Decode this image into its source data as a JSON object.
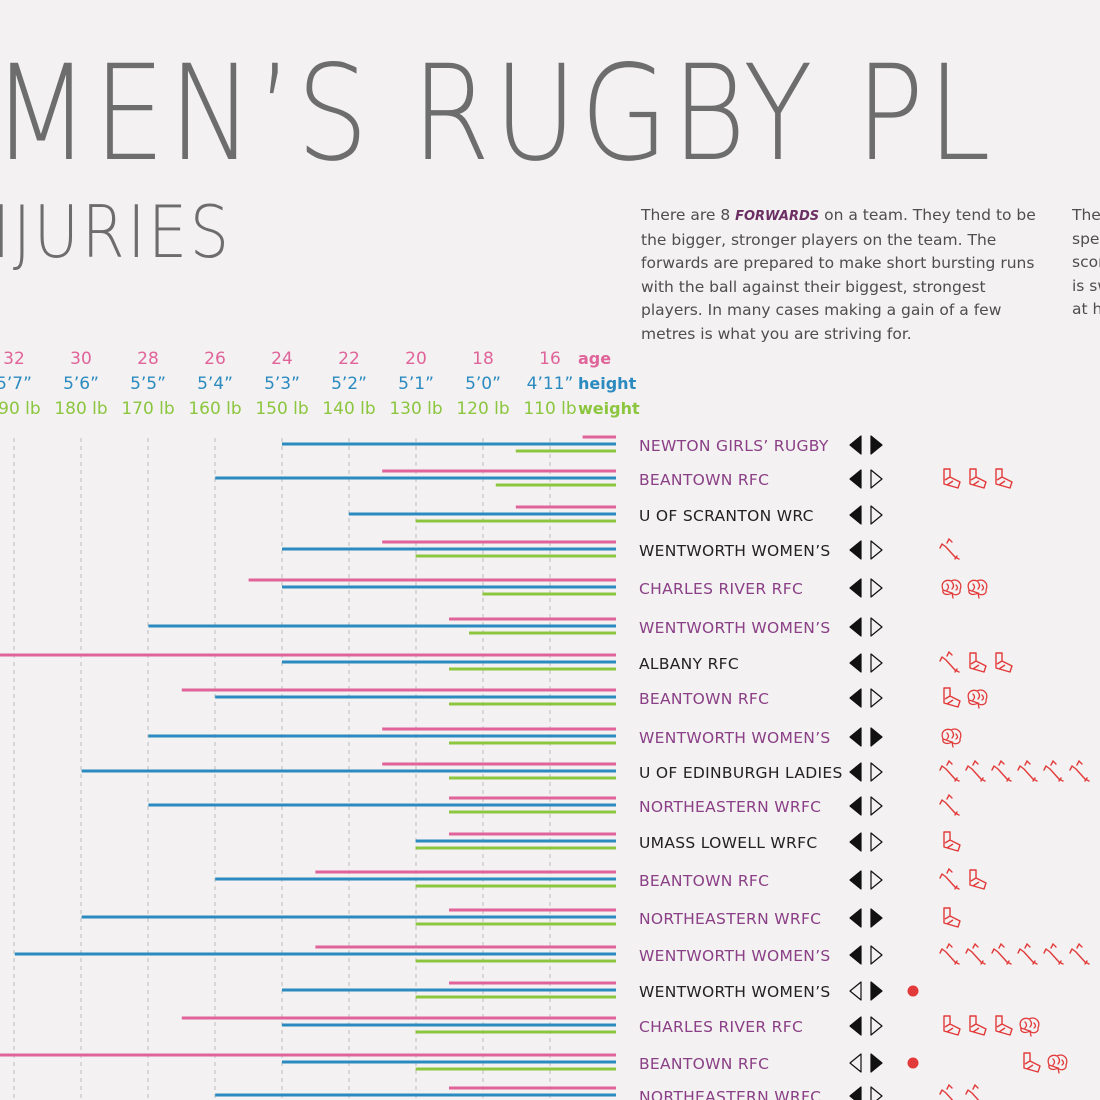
{
  "header": {
    "title": "MEN’S RUGBY PL",
    "subtitle": "IJURIES",
    "para1": {
      "before": "There are 8 ",
      "bold": "FORWARDS",
      "after": " on a team. They tend to be the bigger, stronger players on the team. The forwards are prepared to make short bursting runs with the ball against their biggest, strongest players. In many cases making a gain of a few metres is what you are striving for."
    },
    "para2_lines": [
      "There",
      "speed",
      "scori",
      "is sw",
      "at hi"
    ]
  },
  "colors": {
    "age": "#e0649a",
    "height": "#2b8bc0",
    "weight": "#8cc63f",
    "team_purple": "#8a3f86",
    "team_black": "#222222",
    "injury_red": "#e23a3a",
    "grid": "#bdbdbd",
    "text_gray": "#6d6d6d"
  },
  "chart_data": {
    "type": "bar",
    "axis_labels": {
      "age": "age",
      "height": "height",
      "weight": "weight"
    },
    "ticks": {
      "age": [
        "32",
        "30",
        "28",
        "26",
        "24",
        "22",
        "20",
        "18",
        "16"
      ],
      "height": [
        "5’7”",
        "5’6”",
        "5’5”",
        "5’4”",
        "5’3”",
        "5’2”",
        "5’1”",
        "5’0”",
        "4’11”"
      ],
      "weight": [
        "190 lb",
        "180 lb",
        "170 lb",
        "160 lb",
        "150 lb",
        "140 lb",
        "130 lb",
        "120 lb",
        "110 lb"
      ]
    },
    "axis_ranges": {
      "age": [
        15,
        34
      ],
      "height_in": [
        58,
        68
      ],
      "weight_lb": [
        100,
        200
      ]
    },
    "grid": true,
    "players": [
      {
        "team": "NEWTON GIRLS’ RUGBY",
        "team_color": "purple",
        "age": 16,
        "height_in": 63,
        "weight_lb": 115,
        "left_arrow": "filled",
        "right_arrow": "filled",
        "injuries": [],
        "marker": false
      },
      {
        "team": "BEANTOWN RFC",
        "team_color": "purple",
        "age": 22,
        "height_in": 64,
        "weight_lb": 118,
        "left_arrow": "filled",
        "right_arrow": "outline",
        "injuries": [
          "ankle",
          "ankle",
          "ankle"
        ],
        "marker": false
      },
      {
        "team": "U OF SCRANTON WRC",
        "team_color": "black",
        "age": 18,
        "height_in": 62,
        "weight_lb": 130,
        "left_arrow": "filled",
        "right_arrow": "outline",
        "injuries": [],
        "marker": false
      },
      {
        "team": "WENTWORTH WOMEN’S",
        "team_color": "black",
        "age": 22,
        "height_in": 63,
        "weight_lb": 130,
        "left_arrow": "filled",
        "right_arrow": "outline",
        "injuries": [
          "bone"
        ],
        "marker": false
      },
      {
        "team": "CHARLES RIVER RFC",
        "team_color": "purple",
        "age": 26,
        "height_in": 63,
        "weight_lb": 120,
        "left_arrow": "filled",
        "right_arrow": "outline",
        "injuries": [
          "brain",
          "brain"
        ],
        "marker": false
      },
      {
        "team": "WENTWORTH WOMEN’S",
        "team_color": "purple",
        "age": 20,
        "height_in": 65,
        "weight_lb": 122,
        "left_arrow": "filled",
        "right_arrow": "outline",
        "injuries": [],
        "marker": false
      },
      {
        "team": "ALBANY RFC",
        "team_color": "black",
        "age": 34,
        "height_in": 63,
        "weight_lb": 125,
        "left_arrow": "filled",
        "right_arrow": "outline",
        "injuries": [
          "bone",
          "ankle",
          "ankle"
        ],
        "marker": false
      },
      {
        "team": "BEANTOWN RFC",
        "team_color": "purple",
        "age": 28,
        "height_in": 64,
        "weight_lb": 125,
        "left_arrow": "filled",
        "right_arrow": "outline",
        "injuries": [
          "ankle",
          "brain"
        ],
        "marker": false
      },
      {
        "team": "WENTWORTH WOMEN’S",
        "team_color": "purple",
        "age": 22,
        "height_in": 65,
        "weight_lb": 125,
        "left_arrow": "filled",
        "right_arrow": "filled",
        "injuries": [
          "brain"
        ],
        "marker": false
      },
      {
        "team": "U OF EDINBURGH LADIES",
        "team_color": "black",
        "age": 22,
        "height_in": 66,
        "weight_lb": 125,
        "left_arrow": "filled",
        "right_arrow": "outline",
        "injuries": [
          "bone",
          "bone",
          "bone",
          "bone",
          "bone",
          "bone"
        ],
        "marker": false
      },
      {
        "team": "NORTHEASTERN WRFC",
        "team_color": "purple",
        "age": 20,
        "height_in": 65,
        "weight_lb": 125,
        "left_arrow": "filled",
        "right_arrow": "outline",
        "injuries": [
          "bone"
        ],
        "marker": false
      },
      {
        "team": "UMASS LOWELL WRFC",
        "team_color": "black",
        "age": 20,
        "height_in": 61,
        "weight_lb": 130,
        "left_arrow": "filled",
        "right_arrow": "outline",
        "injuries": [
          "ankle"
        ],
        "marker": false
      },
      {
        "team": "BEANTOWN RFC",
        "team_color": "purple",
        "age": 24,
        "height_in": 64,
        "weight_lb": 130,
        "left_arrow": "filled",
        "right_arrow": "outline",
        "injuries": [
          "bone",
          "ankle"
        ],
        "marker": false
      },
      {
        "team": "NORTHEASTERN WRFC",
        "team_color": "purple",
        "age": 20,
        "height_in": 66,
        "weight_lb": 130,
        "left_arrow": "filled",
        "right_arrow": "filled",
        "injuries": [
          "ankle"
        ],
        "marker": false
      },
      {
        "team": "WENTWORTH WOMEN’S",
        "team_color": "purple",
        "age": 24,
        "height_in": 67,
        "weight_lb": 130,
        "left_arrow": "filled",
        "right_arrow": "outline",
        "injuries": [
          "bone",
          "bone",
          "bone",
          "bone",
          "bone",
          "bone"
        ],
        "marker": false
      },
      {
        "team": "WENTWORTH WOMEN’S",
        "team_color": "black",
        "age": 20,
        "height_in": 63,
        "weight_lb": 130,
        "left_arrow": "outline",
        "right_arrow": "filled",
        "injuries": [],
        "marker": true
      },
      {
        "team": "CHARLES RIVER RFC",
        "team_color": "purple",
        "age": 28,
        "height_in": 63,
        "weight_lb": 130,
        "left_arrow": "filled",
        "right_arrow": "outline",
        "injuries": [
          "ankle",
          "ankle",
          "ankle",
          "brain"
        ],
        "marker": false
      },
      {
        "team": "BEANTOWN RFC",
        "team_color": "purple",
        "age": 34,
        "height_in": 63,
        "weight_lb": 130,
        "left_arrow": "outline",
        "right_arrow": "filled",
        "injuries": [
          "ankle",
          "brain"
        ],
        "marker": true
      },
      {
        "team": "NORTHEASTERN WRFC",
        "team_color": "purple",
        "age": 20,
        "height_in": 64,
        "weight_lb": 130,
        "left_arrow": "filled",
        "right_arrow": "outline",
        "injuries": [
          "bone",
          "bone"
        ],
        "marker": false
      }
    ]
  }
}
